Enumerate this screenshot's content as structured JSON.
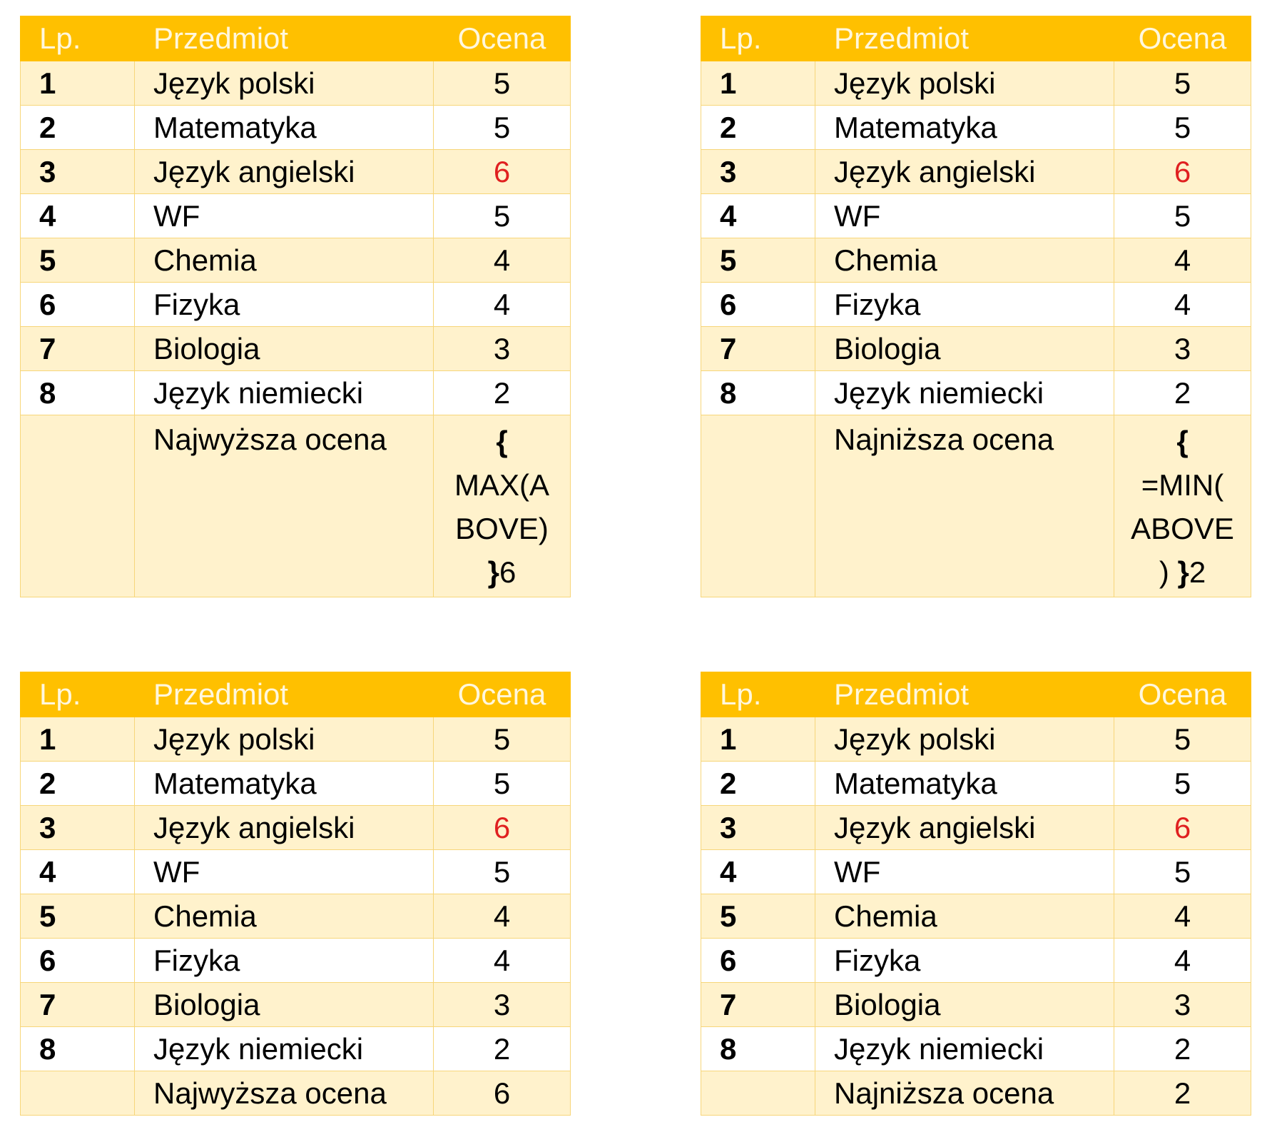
{
  "header": {
    "lp": "Lp.",
    "subject": "Przedmiot",
    "grade": "Ocena"
  },
  "rows": [
    {
      "lp": "1",
      "subject": "Język polski",
      "grade": "5"
    },
    {
      "lp": "2",
      "subject": "Matematyka",
      "grade": "5"
    },
    {
      "lp": "3",
      "subject": "Język angielski",
      "grade": "6",
      "highlight": "#e02020"
    },
    {
      "lp": "4",
      "subject": "WF",
      "grade": "5"
    },
    {
      "lp": "5",
      "subject": "Chemia",
      "grade": "4"
    },
    {
      "lp": "6",
      "subject": "Fizyka",
      "grade": "4"
    },
    {
      "lp": "7",
      "subject": "Biologia",
      "grade": "3"
    },
    {
      "lp": "8",
      "subject": "Język niemiecki",
      "grade": "2"
    }
  ],
  "tables": [
    {
      "summary_label": "Najwyższa ocena",
      "summary_lines": [
        {
          "parts": [
            {
              "text": "{",
              "bold": true
            }
          ]
        },
        {
          "parts": [
            {
              "text": "MAX(A"
            }
          ]
        },
        {
          "parts": [
            {
              "text": "BOVE)"
            }
          ]
        },
        {
          "parts": [
            {
              "text": "}",
              "bold": true
            },
            {
              "text": "6"
            }
          ]
        }
      ]
    },
    {
      "summary_label": "Najniższa ocena",
      "summary_lines": [
        {
          "parts": [
            {
              "text": "{",
              "bold": true
            }
          ]
        },
        {
          "parts": [
            {
              "text": "=MIN("
            }
          ]
        },
        {
          "parts": [
            {
              "text": "ABOVE"
            }
          ]
        },
        {
          "parts": [
            {
              "text": ") "
            },
            {
              "text": "}",
              "bold": true
            },
            {
              "text": "2"
            }
          ]
        }
      ]
    },
    {
      "summary_label": "Najwyższa ocena",
      "summary_lines": [
        {
          "parts": [
            {
              "text": "6"
            }
          ]
        }
      ]
    },
    {
      "summary_label": "Najniższa ocena",
      "summary_lines": [
        {
          "parts": [
            {
              "text": "2"
            }
          ]
        }
      ]
    }
  ],
  "colors": {
    "header_bg": "#ffc000",
    "header_text": "#fff7dd",
    "band": "#fff2cc",
    "border": "#f7d67a",
    "highlight": "#e02020"
  }
}
